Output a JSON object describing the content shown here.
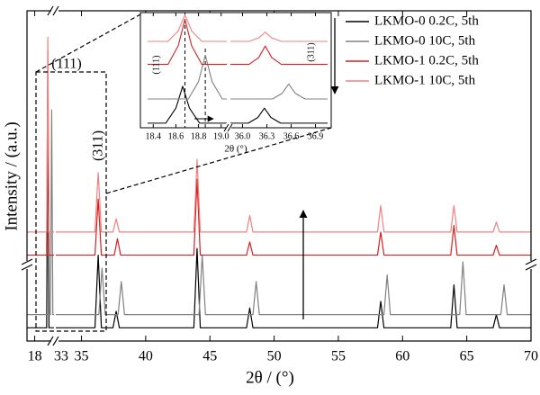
{
  "chart_data": [
    {
      "type": "line",
      "xlabel": "2θ / (°)",
      "ylabel": "Intensity / (a.u.)",
      "segments": [
        [
          17.6,
          19.0
        ],
        [
          33,
          70
        ]
      ],
      "xticks": [
        18,
        33,
        35,
        40,
        45,
        50,
        55,
        60,
        65,
        70
      ],
      "ylim": [
        0,
        100
      ],
      "legend": "upper right",
      "annotations": [
        "(111)",
        "(311)"
      ],
      "series": [
        {
          "name": "LKMO-0 0.2C, 5th",
          "color": "#000000",
          "x": [
            17.6,
            18.62,
            18.68,
            18.74,
            19.0,
            null,
            33,
            36.05,
            36.3,
            36.55,
            37.45,
            37.7,
            37.95,
            43.75,
            44.0,
            44.25,
            47.85,
            48.1,
            48.35,
            58.05,
            58.3,
            58.55,
            63.75,
            64.0,
            64.25,
            67.05,
            67.3,
            67.55,
            70
          ],
          "values": [
            4,
            4,
            80,
            4,
            4,
            null,
            4,
            4,
            26,
            4,
            4,
            9,
            4,
            4,
            28,
            4,
            4,
            10,
            4,
            4,
            12,
            4,
            4,
            17,
            4,
            4,
            8,
            4,
            4
          ]
        },
        {
          "name": "LKMO-0 10C, 5th",
          "color": "#808080",
          "x": [
            17.6,
            18.82,
            18.88,
            18.94,
            19.0,
            null,
            33,
            36.35,
            36.6,
            36.85,
            37.85,
            38.1,
            38.35,
            44.15,
            44.4,
            44.65,
            48.35,
            48.6,
            48.85,
            58.55,
            58.8,
            59.05,
            64.45,
            64.7,
            64.95,
            67.65,
            67.9,
            68.15,
            70
          ],
          "values": [
            8,
            8,
            70,
            8,
            8,
            null,
            8,
            8,
            22,
            8,
            8,
            18,
            8,
            8,
            26,
            8,
            8,
            18,
            8,
            8,
            20,
            8,
            8,
            24,
            8,
            8,
            17,
            8,
            8
          ]
        },
        {
          "name": "LKMO-1 0.2C, 5th",
          "color": "#d42020",
          "x": [
            17.6,
            18.62,
            18.68,
            18.74,
            19.0,
            null,
            33,
            36.05,
            36.3,
            36.55,
            37.55,
            37.8,
            38.05,
            43.75,
            44.0,
            44.25,
            47.85,
            48.1,
            48.35,
            58.05,
            58.3,
            58.55,
            63.75,
            64.0,
            64.25,
            67.05,
            67.3,
            67.55,
            70
          ],
          "values": [
            26,
            26,
            88,
            26,
            26,
            null,
            26,
            26,
            43,
            26,
            26,
            31,
            26,
            26,
            49,
            26,
            26,
            30,
            26,
            26,
            33,
            26,
            26,
            35,
            26,
            26,
            29,
            26,
            26
          ]
        },
        {
          "name": "LKMO-1 10C, 5th",
          "color": "#f08080",
          "x": [
            17.6,
            18.62,
            18.68,
            18.74,
            19.0,
            null,
            33,
            36.05,
            36.3,
            36.55,
            37.45,
            37.7,
            37.95,
            43.75,
            44.0,
            44.25,
            47.85,
            48.1,
            48.35,
            58.05,
            58.3,
            58.55,
            63.75,
            64.0,
            64.25,
            67.05,
            67.3,
            67.55,
            70
          ],
          "values": [
            33,
            33,
            92,
            33,
            33,
            null,
            33,
            33,
            51,
            33,
            33,
            37,
            33,
            33,
            55,
            33,
            33,
            38,
            33,
            33,
            41,
            33,
            33,
            41,
            33,
            33,
            36,
            33,
            33
          ]
        }
      ]
    },
    {
      "type": "line",
      "xlabel": "2θ (°)",
      "segments": [
        [
          18.35,
          19.05
        ],
        [
          35.85,
          37.05
        ]
      ],
      "xticks": [
        18.4,
        18.6,
        18.8,
        {
          "value": 19,
          "label": "19.0"
        },
        {
          "value": 36,
          "label": "36.0"
        },
        36.3,
        36.6,
        36.9
      ],
      "ylim": [
        0,
        100
      ],
      "ref_lines": [
        18.68,
        18.86
      ],
      "annotations": [
        "(111)",
        "(311)"
      ],
      "series": [
        {
          "name": "LKMO-0 0.2C, 5th",
          "color": "#000000",
          "x": [
            18.35,
            18.51,
            18.6,
            18.66,
            18.72,
            18.81,
            19.05,
            null,
            35.85,
            36.07,
            36.19,
            36.27,
            36.35,
            36.47,
            37.05
          ],
          "values": [
            4,
            4,
            17,
            36,
            17,
            4,
            4,
            null,
            4,
            4,
            9,
            17,
            9,
            4,
            4
          ]
        },
        {
          "name": "LKMO-0 10C, 5th",
          "color": "#808080",
          "x": [
            18.35,
            18.71,
            18.8,
            18.86,
            18.92,
            19.01,
            19.05,
            null,
            35.85,
            36.37,
            36.49,
            36.57,
            36.65,
            36.77,
            37.05
          ],
          "values": [
            25,
            25,
            40,
            63,
            40,
            25,
            25,
            null,
            25,
            25,
            30,
            38,
            30,
            25,
            25
          ]
        },
        {
          "name": "LKMO-1 0.2C, 5th",
          "color": "#d42020",
          "x": [
            18.35,
            18.53,
            18.62,
            18.68,
            18.74,
            18.83,
            19.05,
            null,
            35.85,
            36.08,
            36.2,
            36.28,
            36.36,
            36.48,
            37.05
          ],
          "values": [
            55,
            55,
            71,
            94,
            71,
            55,
            55,
            null,
            55,
            55,
            61,
            71,
            61,
            55,
            55
          ]
        },
        {
          "name": "LKMO-1 10C, 5th",
          "color": "#f08080",
          "x": [
            18.35,
            18.53,
            18.62,
            18.68,
            18.74,
            18.83,
            19.05,
            null,
            35.85,
            36.08,
            36.2,
            36.28,
            36.36,
            36.48,
            37.05
          ],
          "values": [
            75,
            75,
            84,
            98,
            84,
            75,
            75,
            null,
            75,
            75,
            78,
            83,
            78,
            75,
            75
          ]
        }
      ]
    }
  ]
}
